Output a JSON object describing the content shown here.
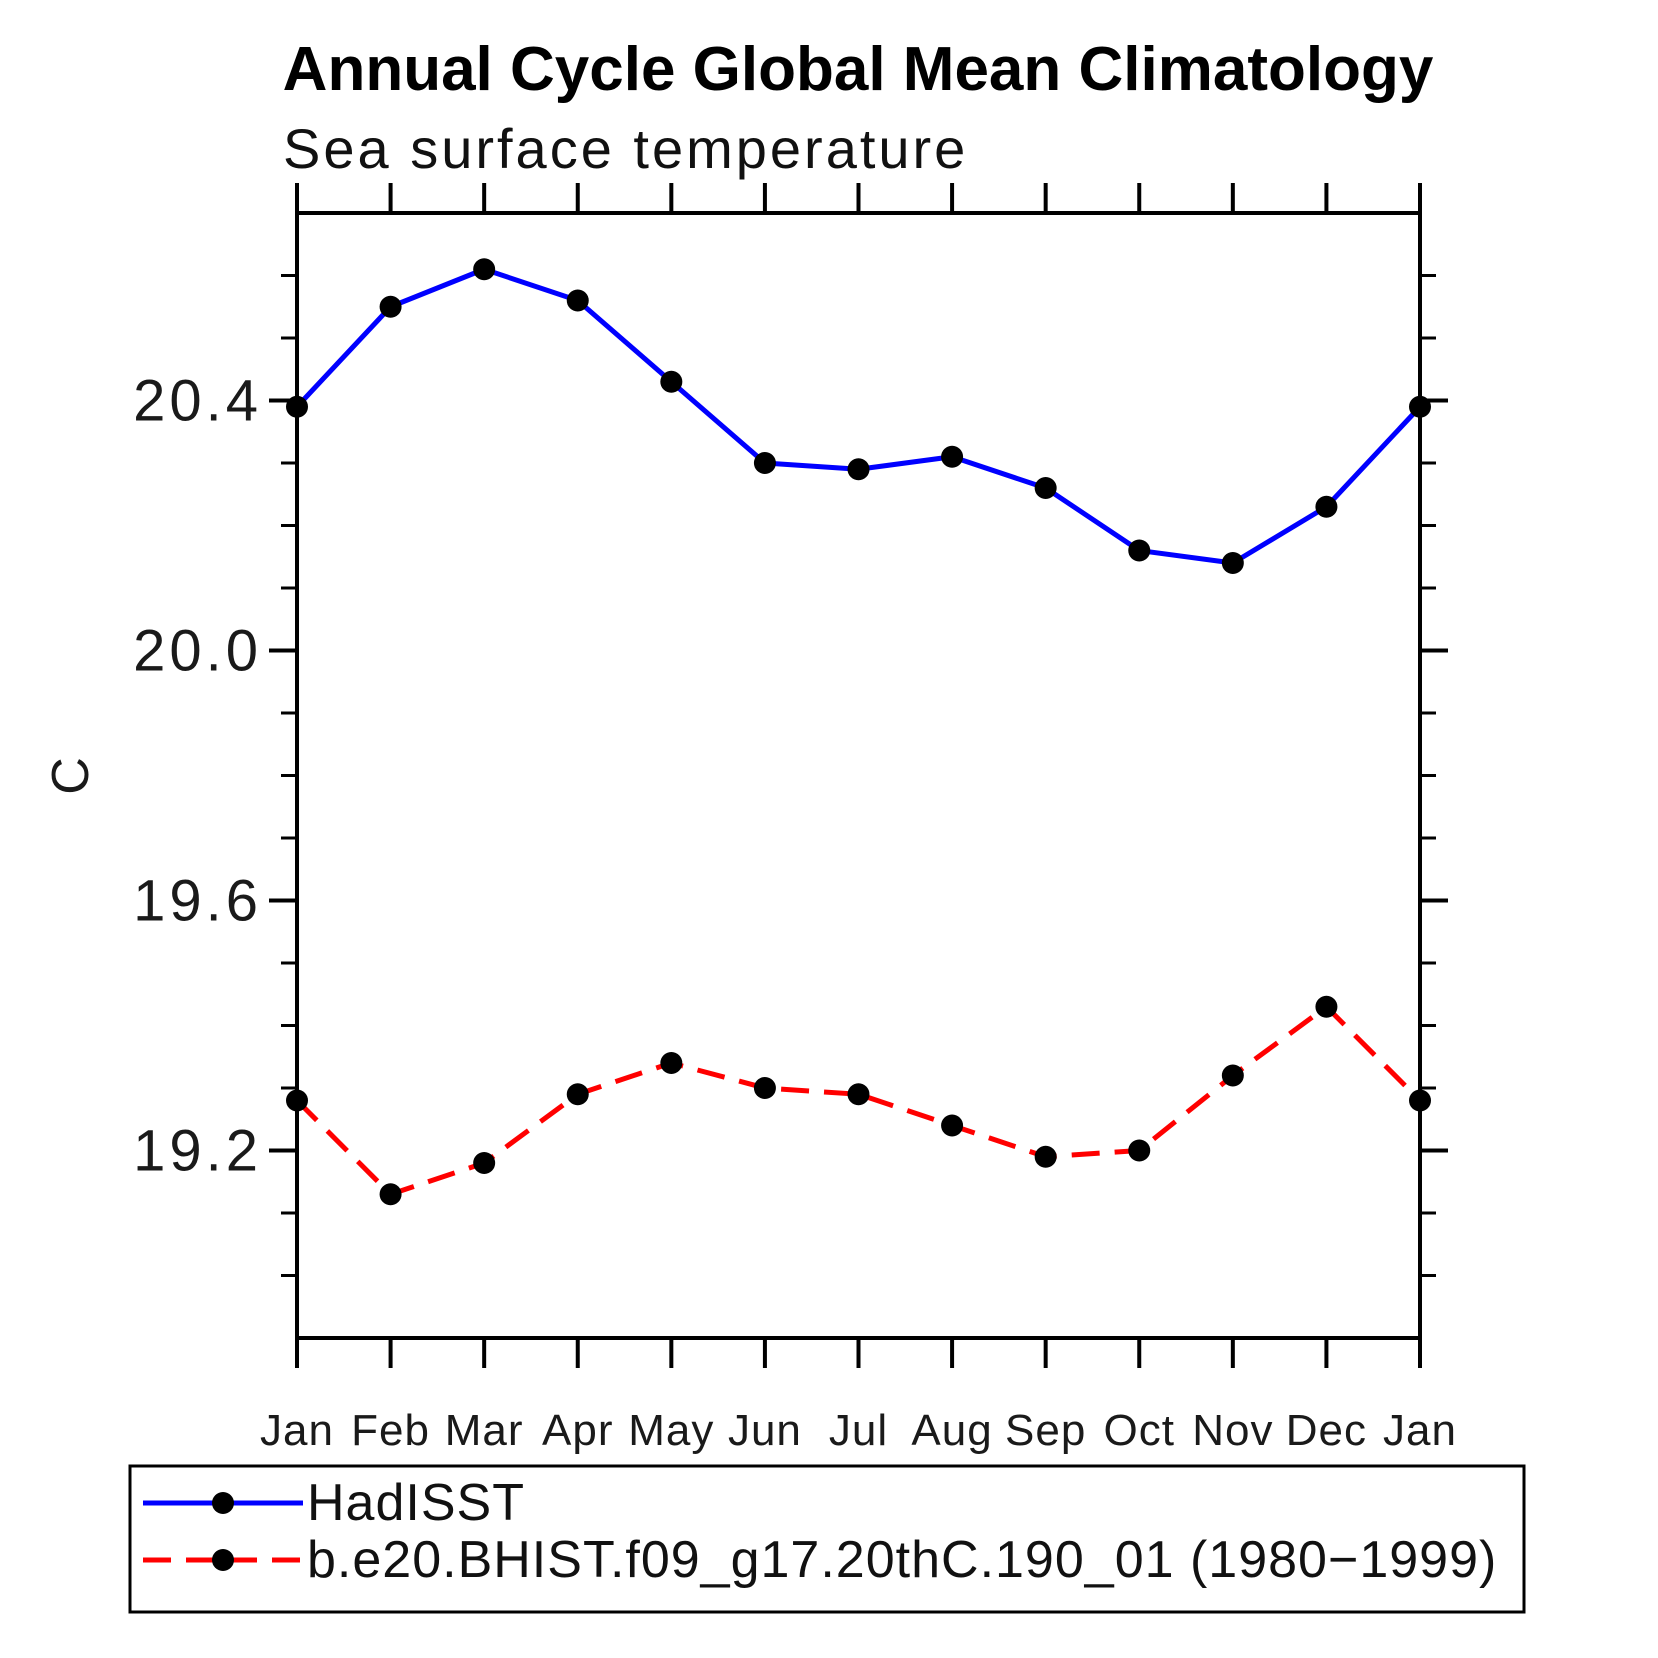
{
  "title": "Annual Cycle Global Mean Climatology",
  "subtitle": "Sea surface temperature",
  "y_axis_title": "C",
  "colors": {
    "hadisst_line": "#0000ff",
    "model_line": "#ff0000",
    "marker": "#000000",
    "axis": "#000000"
  },
  "chart_data": {
    "type": "line",
    "categories": [
      "Jan",
      "Feb",
      "Mar",
      "Apr",
      "May",
      "Jun",
      "Jul",
      "Aug",
      "Sep",
      "Oct",
      "Nov",
      "Dec",
      "Jan"
    ],
    "series": [
      {
        "name": "HadISST",
        "color": "#0000ff",
        "line_style": "solid",
        "marker": "filled-circle",
        "marker_color": "#000000",
        "values": [
          20.39,
          20.55,
          20.61,
          20.56,
          20.43,
          20.3,
          20.29,
          20.31,
          20.26,
          20.16,
          20.14,
          20.23,
          20.39
        ]
      },
      {
        "name": "b.e20.BHIST.f09_g17.20thC.190_01 (1980−1999)",
        "color": "#ff0000",
        "line_style": "dashed",
        "marker": "filled-circle",
        "marker_color": "#000000",
        "values": [
          19.28,
          19.13,
          19.18,
          19.29,
          19.34,
          19.3,
          19.29,
          19.24,
          19.19,
          19.2,
          19.32,
          19.43,
          19.28
        ]
      }
    ],
    "title": "Annual Cycle Global Mean Climatology",
    "subtitle": "Sea surface temperature",
    "xlabel": "",
    "ylabel": "C",
    "ylim": [
      18.9,
      20.7
    ],
    "yticks_major": [
      19.2,
      19.6,
      20.0,
      20.4
    ],
    "ytick_labels": [
      "19.2",
      "19.6",
      "20.0",
      "20.4"
    ],
    "ytick_minor_step": 0.1,
    "grid": false,
    "legend_position": "bottom-left-box"
  },
  "legend": {
    "items": [
      {
        "label": "HadISST"
      },
      {
        "label": "b.e20.BHIST.f09_g17.20thC.190_01 (1980−1999)"
      }
    ]
  }
}
